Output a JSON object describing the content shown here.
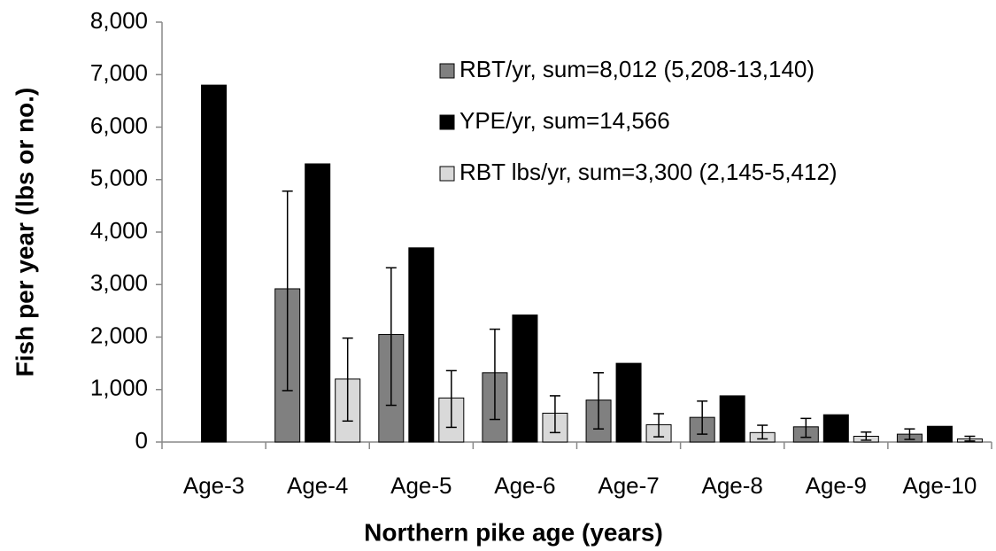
{
  "chart_data": {
    "type": "bar",
    "xlabel": "Northern pike age (years)",
    "ylabel": "Fish per year (lbs or no.)",
    "categories": [
      "Age-3",
      "Age-4",
      "Age-5",
      "Age-6",
      "Age-7",
      "Age-8",
      "Age-9",
      "Age-10"
    ],
    "series": [
      {
        "name": "RBT/yr, sum=8,012 (5,208-13,140)",
        "color": "#808080",
        "values": [
          null,
          2920,
          2050,
          1320,
          800,
          470,
          290,
          150
        ],
        "lower": [
          null,
          980,
          700,
          430,
          250,
          150,
          90,
          50
        ],
        "upper": [
          null,
          4780,
          3320,
          2150,
          1320,
          780,
          450,
          250
        ]
      },
      {
        "name": "YPE/yr, sum=14,566",
        "color": "#000000",
        "values": [
          6800,
          5300,
          3700,
          2420,
          1500,
          880,
          520,
          300
        ]
      },
      {
        "name": "RBT lbs/yr, sum=3,300 (2,145-5,412)",
        "color": "#d9d9d9",
        "values": [
          null,
          1200,
          840,
          550,
          330,
          180,
          110,
          60
        ],
        "lower": [
          null,
          400,
          280,
          180,
          100,
          60,
          35,
          20
        ],
        "upper": [
          null,
          1980,
          1360,
          880,
          540,
          320,
          190,
          110
        ]
      }
    ],
    "ylim": [
      0,
      8000
    ],
    "yticks": [
      0,
      {
        "value": 1000,
        "label": "1,000"
      },
      {
        "value": 2000,
        "label": "2,000"
      },
      {
        "value": 3000,
        "label": "3,000"
      },
      {
        "value": 4000,
        "label": "4,000"
      },
      {
        "value": 5000,
        "label": "5,000"
      },
      {
        "value": 6000,
        "label": "6,000"
      },
      {
        "value": 7000,
        "label": "7,000"
      },
      {
        "value": 8000,
        "label": "8,000"
      }
    ],
    "legend": "upper right",
    "grid": false
  }
}
